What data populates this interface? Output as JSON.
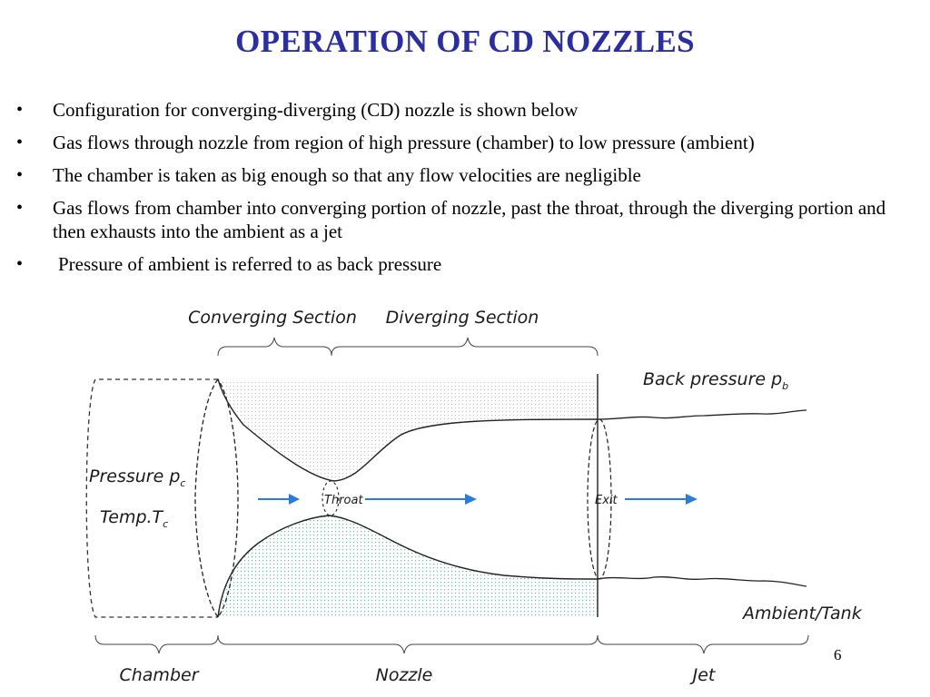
{
  "title": "OPERATION OF CD NOZZLES",
  "bullets": [
    "Configuration for converging-diverging (CD) nozzle is shown below",
    "Gas flows through nozzle from region of high pressure (chamber) to low pressure (ambient)",
    "The chamber is taken as big enough so that any flow velocities are negligible",
    "Gas flows from chamber into converging portion of nozzle, past the throat, through the diverging portion and then exhausts into the ambient as a jet",
    "Pressure of ambient is referred to as back pressure"
  ],
  "bullet_glyph": "•",
  "diagram": {
    "converging_section": "Converging Section",
    "diverging_section": "Diverging Section",
    "back_pressure": "Back pressure p",
    "back_pressure_sub": "b",
    "pressure": "Pressure p",
    "pressure_sub": "c",
    "temp": "Temp.T",
    "temp_sub": "c",
    "throat": "Throat",
    "exit": "Exit",
    "ambient": "Ambient/Tank",
    "chamber": "Chamber",
    "nozzle": "Nozzle",
    "jet": "Jet"
  },
  "page_number": "6",
  "colors": {
    "title": "#2b2f9e",
    "arrow": "#2b7bd8",
    "stipple_upper": "#c4c4c4",
    "stipple_lower": "#5fbfa8"
  }
}
